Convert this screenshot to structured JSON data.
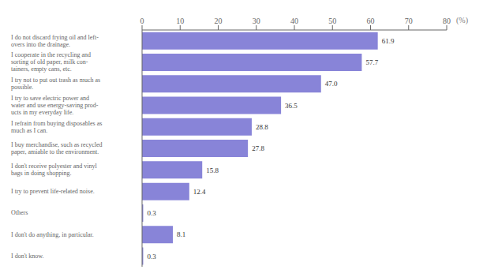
{
  "chart_data": {
    "type": "bar",
    "orientation": "horizontal",
    "categories": [
      "I do not discard frying oil and left-\novers into the drainage.",
      "I cooperate in the recycling and\nsorting of old paper, milk con-\ntainers, empty cans, etc.",
      "I try not to put out trash as much as\npossible.",
      "I try to save electric power and\nwater and use energy-saving prod-\nucts in my everyday life.",
      "I refrain from buying disposables as\nmuch as I can.",
      "I buy merchandise, such as recycled\npaper, amiable to the environment.",
      "I don't receive polyester and vinyl\nbags in doing shopping.",
      "I try to prevent life-related noise.",
      "Others",
      "I don't do anything, in particular.",
      "I don't know."
    ],
    "values": [
      61.9,
      57.7,
      47.0,
      36.5,
      28.8,
      27.8,
      15.8,
      12.4,
      0.3,
      8.1,
      0.3
    ],
    "value_labels": [
      "61.9",
      "57.7",
      "47.0",
      "36.5",
      "28.8",
      "27.8",
      "15.8",
      "12.4",
      "0.3",
      "8.1",
      "0.3"
    ],
    "data_labels": true,
    "xlim": [
      0,
      80
    ],
    "xticks": [
      0,
      10,
      20,
      30,
      40,
      50,
      60,
      70,
      80
    ],
    "xlabel": "(%)"
  }
}
